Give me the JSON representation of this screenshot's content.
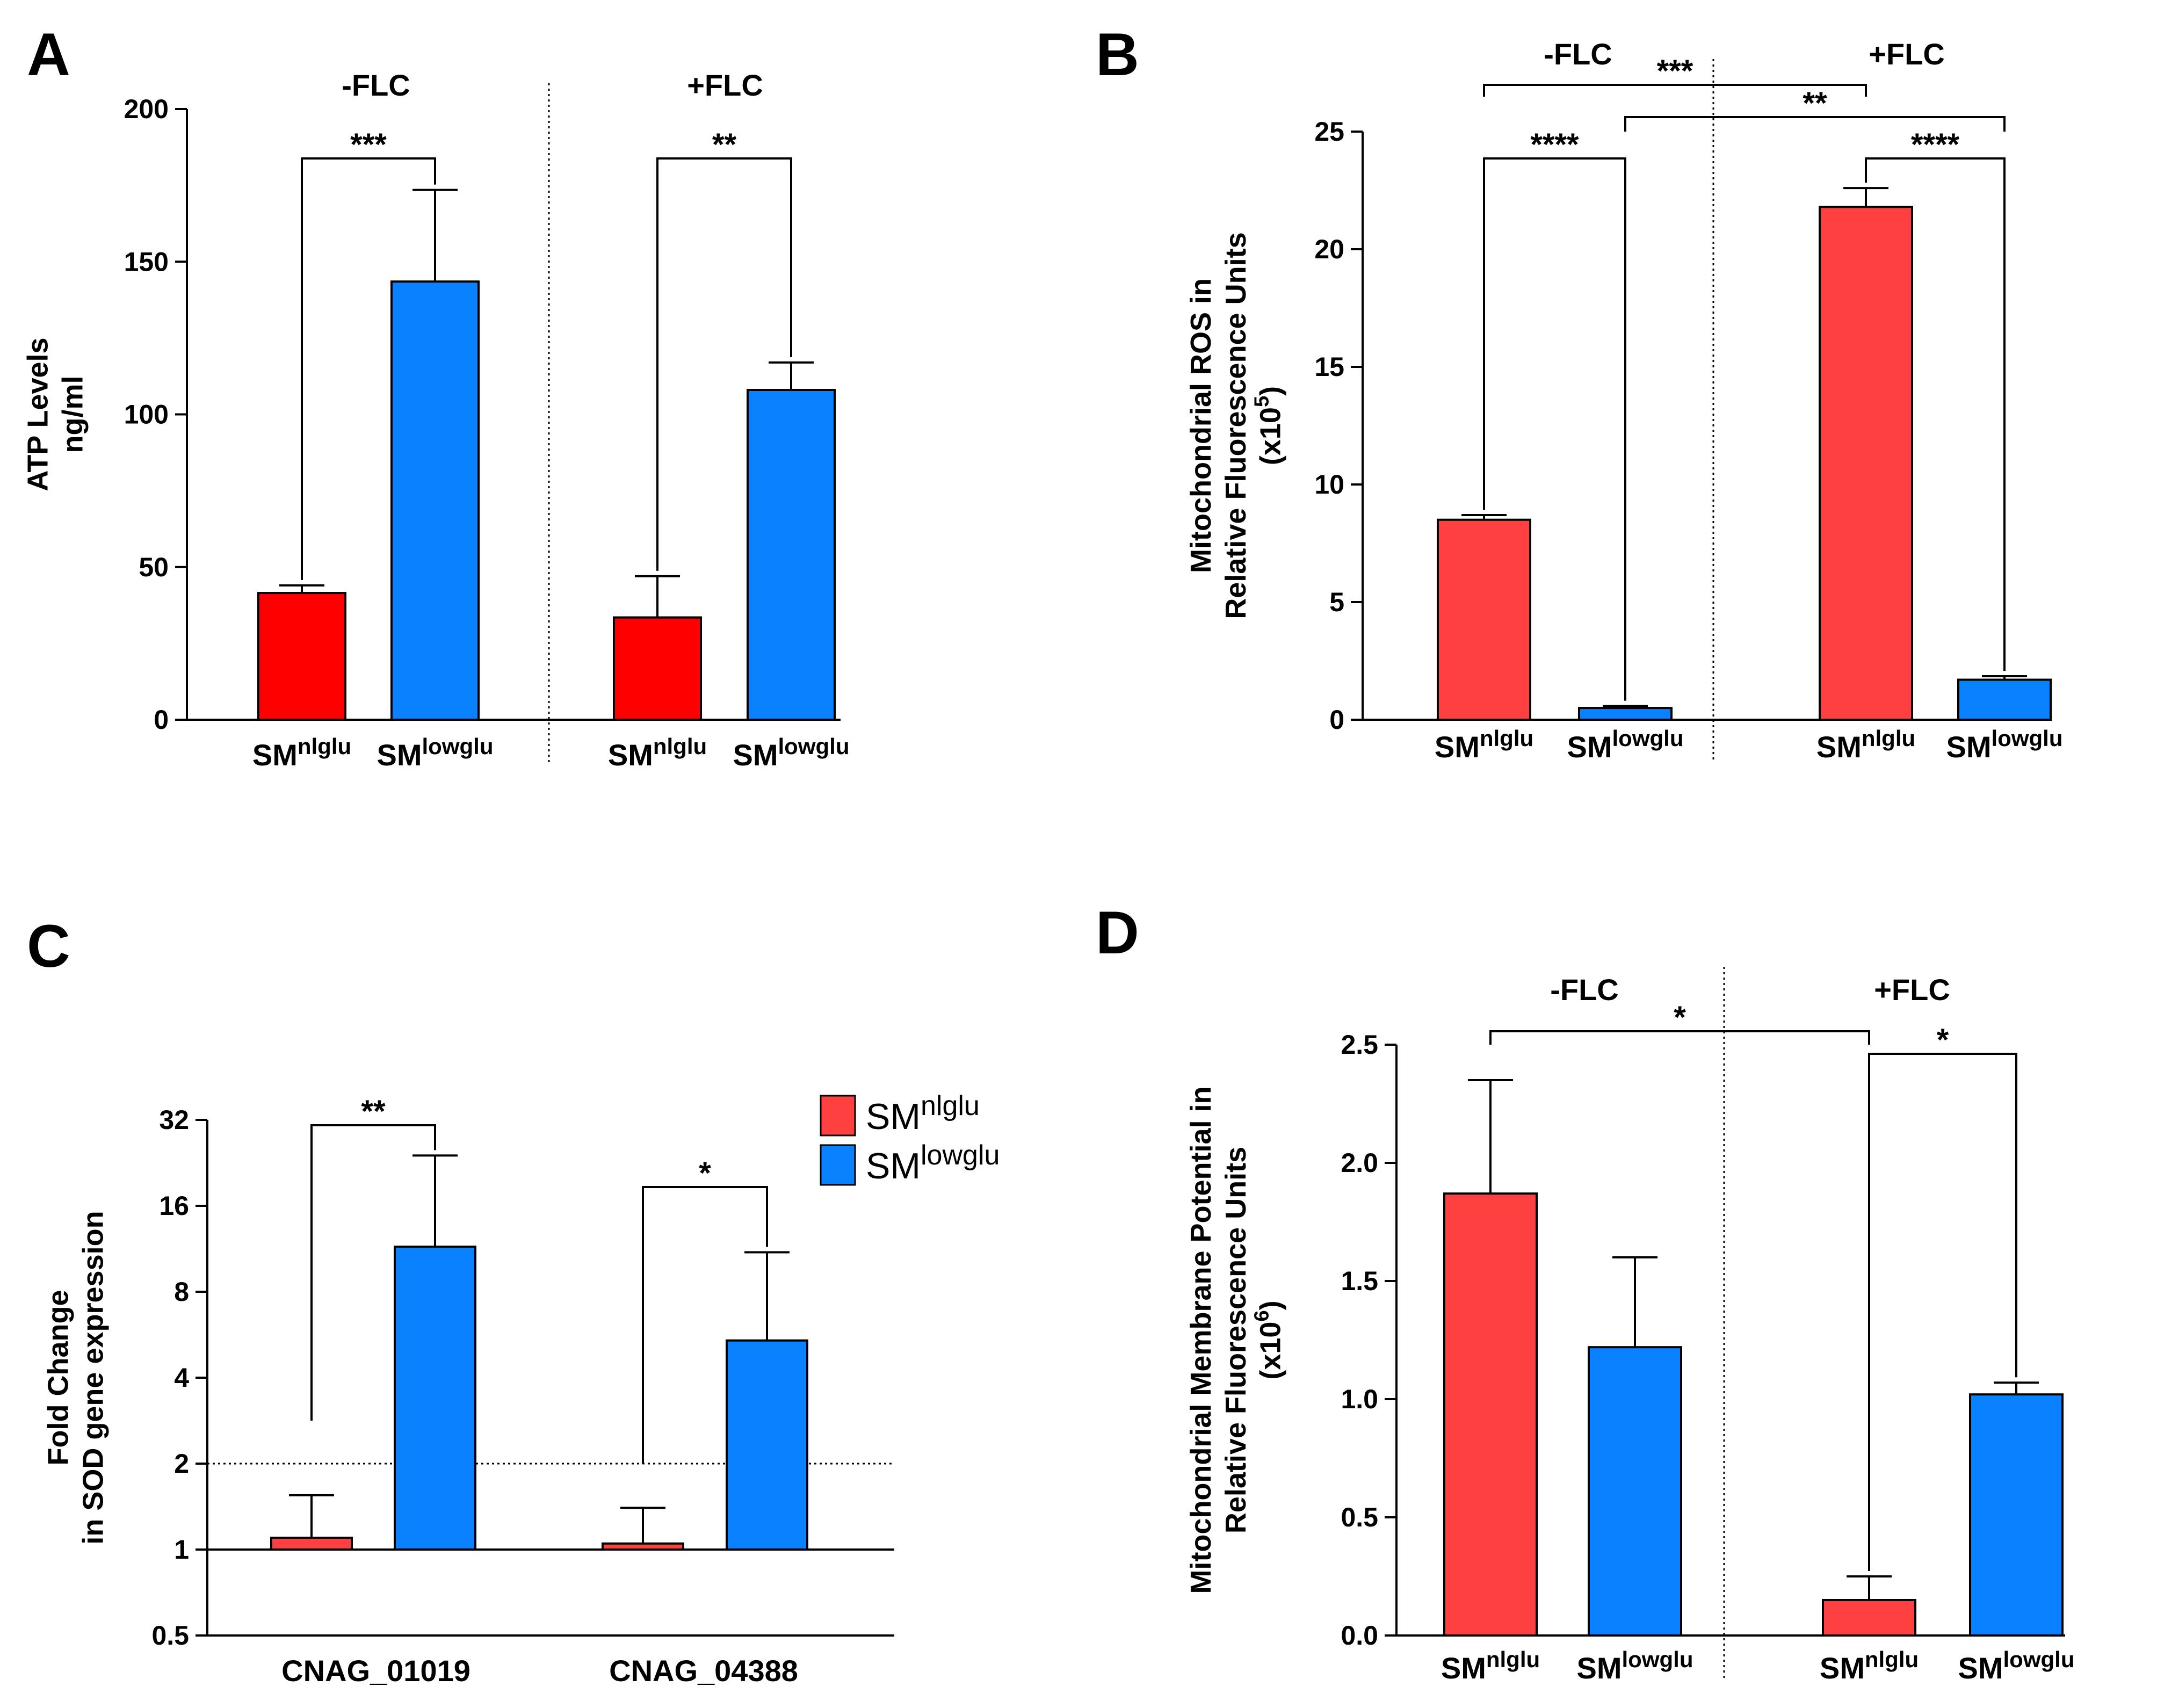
{
  "colors": {
    "nlglu": "#ff0000",
    "lowglu": "#0a82ff",
    "nlglu_light": "#ff4040",
    "axis": "#000000"
  },
  "chart_data": [
    {
      "id": "A",
      "panel_label": "A",
      "type": "bar",
      "scale": "linear",
      "ylabel": [
        "ATP Levels",
        "ng/ml"
      ],
      "ylim": [
        0,
        200
      ],
      "yticks": [
        "0",
        "50",
        "100",
        "150",
        "200"
      ],
      "groups": [
        "-FLC",
        "+FLC"
      ],
      "bars": [
        {
          "group": "-FLC",
          "series": "nlglu",
          "value": 41.5,
          "err": 2.5
        },
        {
          "group": "-FLC",
          "series": "lowglu",
          "value": 143.5,
          "err": 30
        },
        {
          "group": "+FLC",
          "series": "nlglu",
          "value": 33.5,
          "err": 13.5
        },
        {
          "group": "+FLC",
          "series": "lowglu",
          "value": 108,
          "err": 9
        }
      ],
      "x_tick_labels": [
        {
          "base": "SM",
          "sup": "nlglu"
        },
        {
          "base": "SM",
          "sup": "lowglu"
        },
        {
          "base": "SM",
          "sup": "nlglu"
        },
        {
          "base": "SM",
          "sup": "lowglu"
        }
      ],
      "significance": [
        {
          "from": 0,
          "to": 1,
          "label": "***"
        },
        {
          "from": 2,
          "to": 3,
          "label": "**"
        }
      ]
    },
    {
      "id": "B",
      "panel_label": "B",
      "type": "bar",
      "scale": "linear",
      "ylabel": [
        "Mitochondrial ROS in",
        "Relative Fluorescence Units"
      ],
      "ylabel_unit": {
        "base": "(x10",
        "sup": "5",
        "close": ")"
      },
      "ylim": [
        0,
        25
      ],
      "yticks": [
        "0",
        "5",
        "10",
        "15",
        "20",
        "25"
      ],
      "groups": [
        "-FLC",
        "+FLC"
      ],
      "bars": [
        {
          "group": "-FLC",
          "series": "nlglu",
          "value": 8.5,
          "err": 0.2
        },
        {
          "group": "-FLC",
          "series": "lowglu",
          "value": 0.5,
          "err": 0.08
        },
        {
          "group": "+FLC",
          "series": "nlglu",
          "value": 21.8,
          "err": 0.8
        },
        {
          "group": "+FLC",
          "series": "lowglu",
          "value": 1.7,
          "err": 0.15
        }
      ],
      "x_tick_labels": [
        {
          "base": "SM",
          "sup": "nlglu"
        },
        {
          "base": "SM",
          "sup": "lowglu"
        },
        {
          "base": "SM",
          "sup": "nlglu"
        },
        {
          "base": "SM",
          "sup": "lowglu"
        }
      ],
      "significance": [
        {
          "from": 0,
          "to": 2,
          "label": "***"
        },
        {
          "from": 1,
          "to": 3,
          "label": "**"
        },
        {
          "from": 0,
          "to": 1,
          "label": "****"
        },
        {
          "from": 2,
          "to": 3,
          "label": "****"
        }
      ]
    },
    {
      "id": "C",
      "panel_label": "C",
      "type": "bar",
      "scale": "log2",
      "ylabel": [
        "Fold Change",
        "in SOD gene expression"
      ],
      "ylim": [
        0.5,
        32
      ],
      "yticks": [
        "0.5",
        "1",
        "2",
        "4",
        "8",
        "16",
        "32"
      ],
      "categories": [
        "CNAG_01019",
        "CNAG_04388"
      ],
      "reference_line": 2,
      "baseline": 1,
      "bars": [
        {
          "category": "CNAG_01019",
          "series": "nlglu",
          "value": 1.1,
          "err_top": 1.55
        },
        {
          "category": "CNAG_01019",
          "series": "lowglu",
          "value": 11.5,
          "err_top": 24
        },
        {
          "category": "CNAG_04388",
          "series": "nlglu",
          "value": 1.05,
          "err_top": 1.4
        },
        {
          "category": "CNAG_04388",
          "series": "lowglu",
          "value": 5.4,
          "err_top": 11
        }
      ],
      "legend": [
        {
          "series": "nlglu",
          "base": "SM",
          "sup": "nlglu"
        },
        {
          "series": "lowglu",
          "base": "SM",
          "sup": "lowglu"
        }
      ],
      "significance": [
        {
          "from": 0,
          "to": 1,
          "label": "**"
        },
        {
          "from": 2,
          "to": 3,
          "label": "*"
        }
      ]
    },
    {
      "id": "D",
      "panel_label": "D",
      "type": "bar",
      "scale": "linear",
      "ylabel": [
        "Mitochondrial Membrane Potential in",
        "Relative Fluorescence Units"
      ],
      "ylabel_unit": {
        "base": "(x10",
        "sup": "6",
        "close": ")"
      },
      "ylim": [
        0,
        2.5
      ],
      "yticks": [
        "0.0",
        "0.5",
        "1.0",
        "1.5",
        "2.0",
        "2.5"
      ],
      "groups": [
        "-FLC",
        "+FLC"
      ],
      "bars": [
        {
          "group": "-FLC",
          "series": "nlglu",
          "value": 1.87,
          "err": 0.48
        },
        {
          "group": "-FLC",
          "series": "lowglu",
          "value": 1.22,
          "err": 0.38
        },
        {
          "group": "+FLC",
          "series": "nlglu",
          "value": 0.15,
          "err": 0.1
        },
        {
          "group": "+FLC",
          "series": "lowglu",
          "value": 1.02,
          "err": 0.05
        }
      ],
      "x_tick_labels": [
        {
          "base": "SM",
          "sup": "nlglu"
        },
        {
          "base": "SM",
          "sup": "lowglu"
        },
        {
          "base": "SM",
          "sup": "nlglu"
        },
        {
          "base": "SM",
          "sup": "lowglu"
        }
      ],
      "significance": [
        {
          "from": 0,
          "to": 2,
          "label": "*"
        },
        {
          "from": 2,
          "to": 3,
          "label": "*"
        }
      ]
    }
  ]
}
